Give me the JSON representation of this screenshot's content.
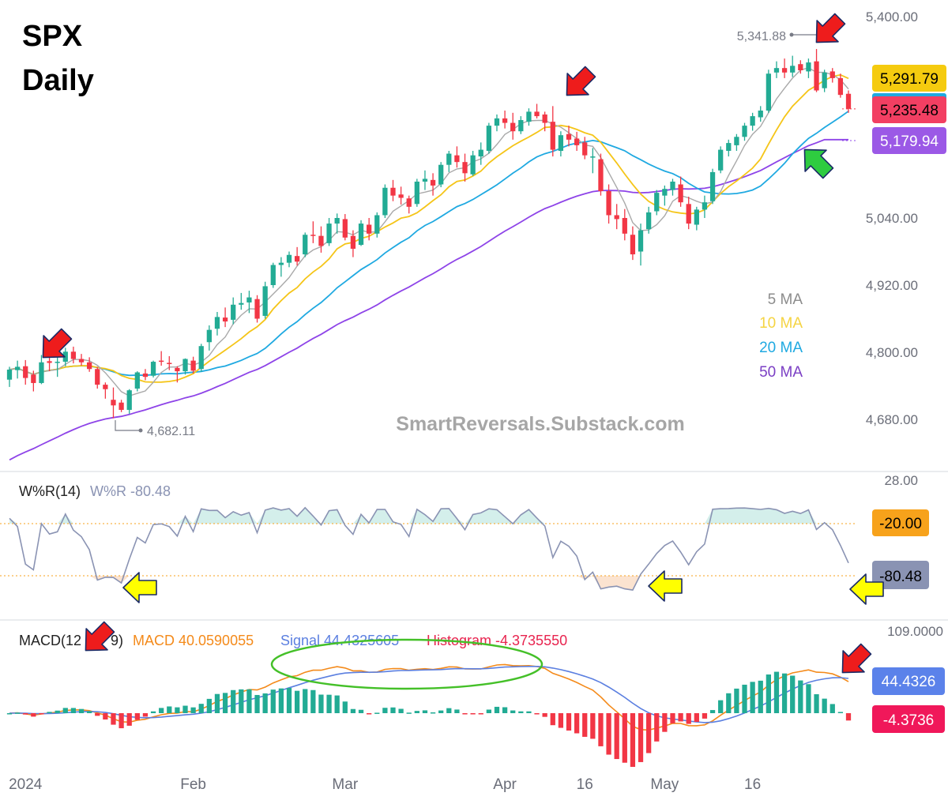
{
  "colors": {
    "up": "#22ab94",
    "down": "#f23645",
    "ma5": "#a9a9a9",
    "ma10": "#f5c518",
    "ma20": "#1fa9e1",
    "ma50": "#8e44e8",
    "wr": "#8a93b3",
    "macd": "#f48a1a",
    "signal": "#5b7fe0",
    "ob_fill": "#d4efeb",
    "os_fill": "#fbe3d0",
    "ellipse": "#44c028",
    "arrow_red": "#ee1c1c",
    "arrow_green": "#2ecc40",
    "arrow_yellow": "#ffff00",
    "tag_ma10": "#f5cb0f",
    "tag_close": "#f23f62",
    "tag_ma50": "#9b59e6",
    "tag_wr_top": "#f7a21b",
    "tag_wr": "#8a93b3",
    "tag_signal": "#5b82ea",
    "tag_hist": "#f0185a"
  },
  "title": {
    "line1": "SPX",
    "line2": "Daily"
  },
  "watermark": "SmartReversals.Substack.com",
  "chart_data": [
    {
      "type": "candlestick",
      "symbol": "SPX",
      "timeframe": "Daily",
      "ylim": [
        4560,
        5400
      ],
      "y_ticks": [
        "5,400.00",
        "5,040.00",
        "4,920.00",
        "4,800.00",
        "4,680.00"
      ],
      "y_tick_values": [
        5400,
        5040,
        4920,
        4800,
        4680
      ],
      "x_ticks": [
        "2024",
        "Feb",
        "Mar",
        "Apr",
        "16",
        "May",
        "16"
      ],
      "x_tick_positions": [
        2,
        23,
        42,
        62,
        72,
        82,
        93
      ],
      "legend": [
        "5 MA",
        "10 MA",
        "20 MA",
        "50 MA"
      ],
      "price_labels": {
        "ma10": "5,291.79",
        "close": "5,235.48",
        "ma50": "5,179.94"
      },
      "annotations": {
        "high": "5,341.88",
        "low": "4,682.11"
      },
      "ohlc": [
        [
          4751,
          4774,
          4738,
          4769
        ],
        [
          4768,
          4785,
          4753,
          4774
        ],
        [
          4775,
          4786,
          4742,
          4754
        ],
        [
          4760,
          4767,
          4730,
          4745
        ],
        [
          4745,
          4795,
          4743,
          4782
        ],
        [
          4784,
          4805,
          4766,
          4781
        ],
        [
          4782,
          4794,
          4756,
          4783
        ],
        [
          4783,
          4808,
          4775,
          4801
        ],
        [
          4801,
          4810,
          4780,
          4788
        ],
        [
          4788,
          4797,
          4776,
          4782
        ],
        [
          4782,
          4791,
          4765,
          4770
        ],
        [
          4770,
          4774,
          4735,
          4742
        ],
        [
          4742,
          4746,
          4717,
          4734
        ],
        [
          4715,
          4737,
          4682,
          4705
        ],
        [
          4710,
          4715,
          4693,
          4697
        ],
        [
          4697,
          4734,
          4690,
          4732
        ],
        [
          4735,
          4766,
          4730,
          4764
        ],
        [
          4762,
          4770,
          4750,
          4756
        ],
        [
          4758,
          4785,
          4755,
          4783
        ],
        [
          4785,
          4802,
          4776,
          4784
        ],
        [
          4781,
          4793,
          4768,
          4780
        ],
        [
          4772,
          4775,
          4746,
          4766
        ],
        [
          4766,
          4789,
          4760,
          4788
        ],
        [
          4785,
          4792,
          4762,
          4767
        ],
        [
          4770,
          4815,
          4765,
          4811
        ],
        [
          4818,
          4848,
          4803,
          4840
        ],
        [
          4842,
          4872,
          4830,
          4863
        ],
        [
          4862,
          4880,
          4845,
          4855
        ],
        [
          4858,
          4898,
          4850,
          4885
        ],
        [
          4885,
          4906,
          4876,
          4888
        ],
        [
          4889,
          4910,
          4870,
          4898
        ],
        [
          4895,
          4902,
          4853,
          4860
        ],
        [
          4865,
          4926,
          4860,
          4918
        ],
        [
          4920,
          4960,
          4915,
          4956
        ],
        [
          4956,
          4970,
          4935,
          4960
        ],
        [
          4960,
          4980,
          4952,
          4974
        ],
        [
          4972,
          4988,
          4955,
          4962
        ],
        [
          4975,
          5014,
          4970,
          5010
        ],
        [
          5010,
          5034,
          4995,
          5008
        ],
        [
          5008,
          5025,
          4978,
          4990
        ],
        [
          4995,
          5040,
          4990,
          5030
        ],
        [
          5030,
          5048,
          5012,
          5040
        ],
        [
          5038,
          5047,
          5000,
          5005
        ],
        [
          5008,
          5018,
          4970,
          4985
        ],
        [
          4992,
          5036,
          4990,
          5030
        ],
        [
          5028,
          5040,
          5000,
          5012
        ],
        [
          5012,
          5050,
          5005,
          5045
        ],
        [
          5045,
          5100,
          5040,
          5094
        ],
        [
          5094,
          5108,
          5070,
          5080
        ],
        [
          5082,
          5096,
          5064,
          5076
        ],
        [
          5075,
          5080,
          5048,
          5060
        ],
        [
          5065,
          5110,
          5060,
          5105
        ],
        [
          5105,
          5125,
          5090,
          5110
        ],
        [
          5108,
          5120,
          5080,
          5098
        ],
        [
          5100,
          5140,
          5095,
          5135
        ],
        [
          5135,
          5160,
          5122,
          5155
        ],
        [
          5152,
          5168,
          5130,
          5140
        ],
        [
          5140,
          5155,
          5105,
          5120
        ],
        [
          5118,
          5160,
          5115,
          5152
        ],
        [
          5150,
          5175,
          5135,
          5162
        ],
        [
          5160,
          5210,
          5155,
          5205
        ],
        [
          5205,
          5225,
          5195,
          5218
        ],
        [
          5218,
          5232,
          5200,
          5210
        ],
        [
          5210,
          5228,
          5180,
          5195
        ],
        [
          5195,
          5222,
          5190,
          5215
        ],
        [
          5212,
          5236,
          5205,
          5230
        ],
        [
          5230,
          5244,
          5218,
          5222
        ],
        [
          5225,
          5230,
          5195,
          5210
        ],
        [
          5212,
          5240,
          5150,
          5162
        ],
        [
          5160,
          5195,
          5150,
          5188
        ],
        [
          5190,
          5205,
          5168,
          5180
        ],
        [
          5182,
          5194,
          5160,
          5170
        ],
        [
          5175,
          5185,
          5145,
          5152
        ],
        [
          5150,
          5165,
          5120,
          5150
        ],
        [
          5145,
          5155,
          5080,
          5088
        ],
        [
          5088,
          5100,
          5030,
          5045
        ],
        [
          5045,
          5065,
          5020,
          5038
        ],
        [
          5040,
          5056,
          5000,
          5012
        ],
        [
          5010,
          5025,
          4965,
          4975
        ],
        [
          4980,
          5030,
          4955,
          5018
        ],
        [
          5020,
          5060,
          5012,
          5050
        ],
        [
          5052,
          5090,
          5045,
          5085
        ],
        [
          5080,
          5098,
          5062,
          5092
        ],
        [
          5090,
          5110,
          5080,
          5105
        ],
        [
          5100,
          5114,
          5060,
          5068
        ],
        [
          5065,
          5078,
          5020,
          5030
        ],
        [
          5028,
          5060,
          5018,
          5055
        ],
        [
          5055,
          5080,
          5040,
          5068
        ],
        [
          5070,
          5128,
          5065,
          5122
        ],
        [
          5125,
          5168,
          5120,
          5162
        ],
        [
          5160,
          5180,
          5150,
          5174
        ],
        [
          5170,
          5190,
          5160,
          5185
        ],
        [
          5185,
          5210,
          5178,
          5205
        ],
        [
          5205,
          5228,
          5196,
          5222
        ],
        [
          5220,
          5240,
          5212,
          5232
        ],
        [
          5232,
          5305,
          5228,
          5298
        ],
        [
          5300,
          5320,
          5290,
          5308
        ],
        [
          5308,
          5325,
          5290,
          5300
        ],
        [
          5300,
          5330,
          5292,
          5312
        ],
        [
          5315,
          5322,
          5298,
          5304
        ],
        [
          5302,
          5325,
          5290,
          5318
        ],
        [
          5320,
          5342,
          5265,
          5268
        ],
        [
          5272,
          5305,
          5265,
          5300
        ],
        [
          5302,
          5308,
          5282,
          5290
        ],
        [
          5290,
          5298,
          5255,
          5260
        ],
        [
          5262,
          5268,
          5228,
          5235
        ]
      ]
    },
    {
      "type": "line",
      "name": "W%R(14)",
      "label": "W%R(14)",
      "value_label": "W%R -80.48",
      "ylim": [
        -100,
        0
      ],
      "levels": [
        -20,
        -80
      ],
      "y_ticks": [
        "28.00"
      ],
      "tags": {
        "upper": "-20.00",
        "current": "-80.48"
      }
    },
    {
      "type": "line",
      "name": "MACD",
      "label": "MACD(12",
      "label_tail": "9)",
      "readouts": {
        "macd": "MACD 40.0590055",
        "signal": "Signal 44.4325605",
        "histogram": "Histogram -4.3735550"
      },
      "y_ticks": [
        "109.0000"
      ],
      "tags": {
        "signal": "44.4326",
        "histogram": "-4.3736"
      }
    }
  ]
}
